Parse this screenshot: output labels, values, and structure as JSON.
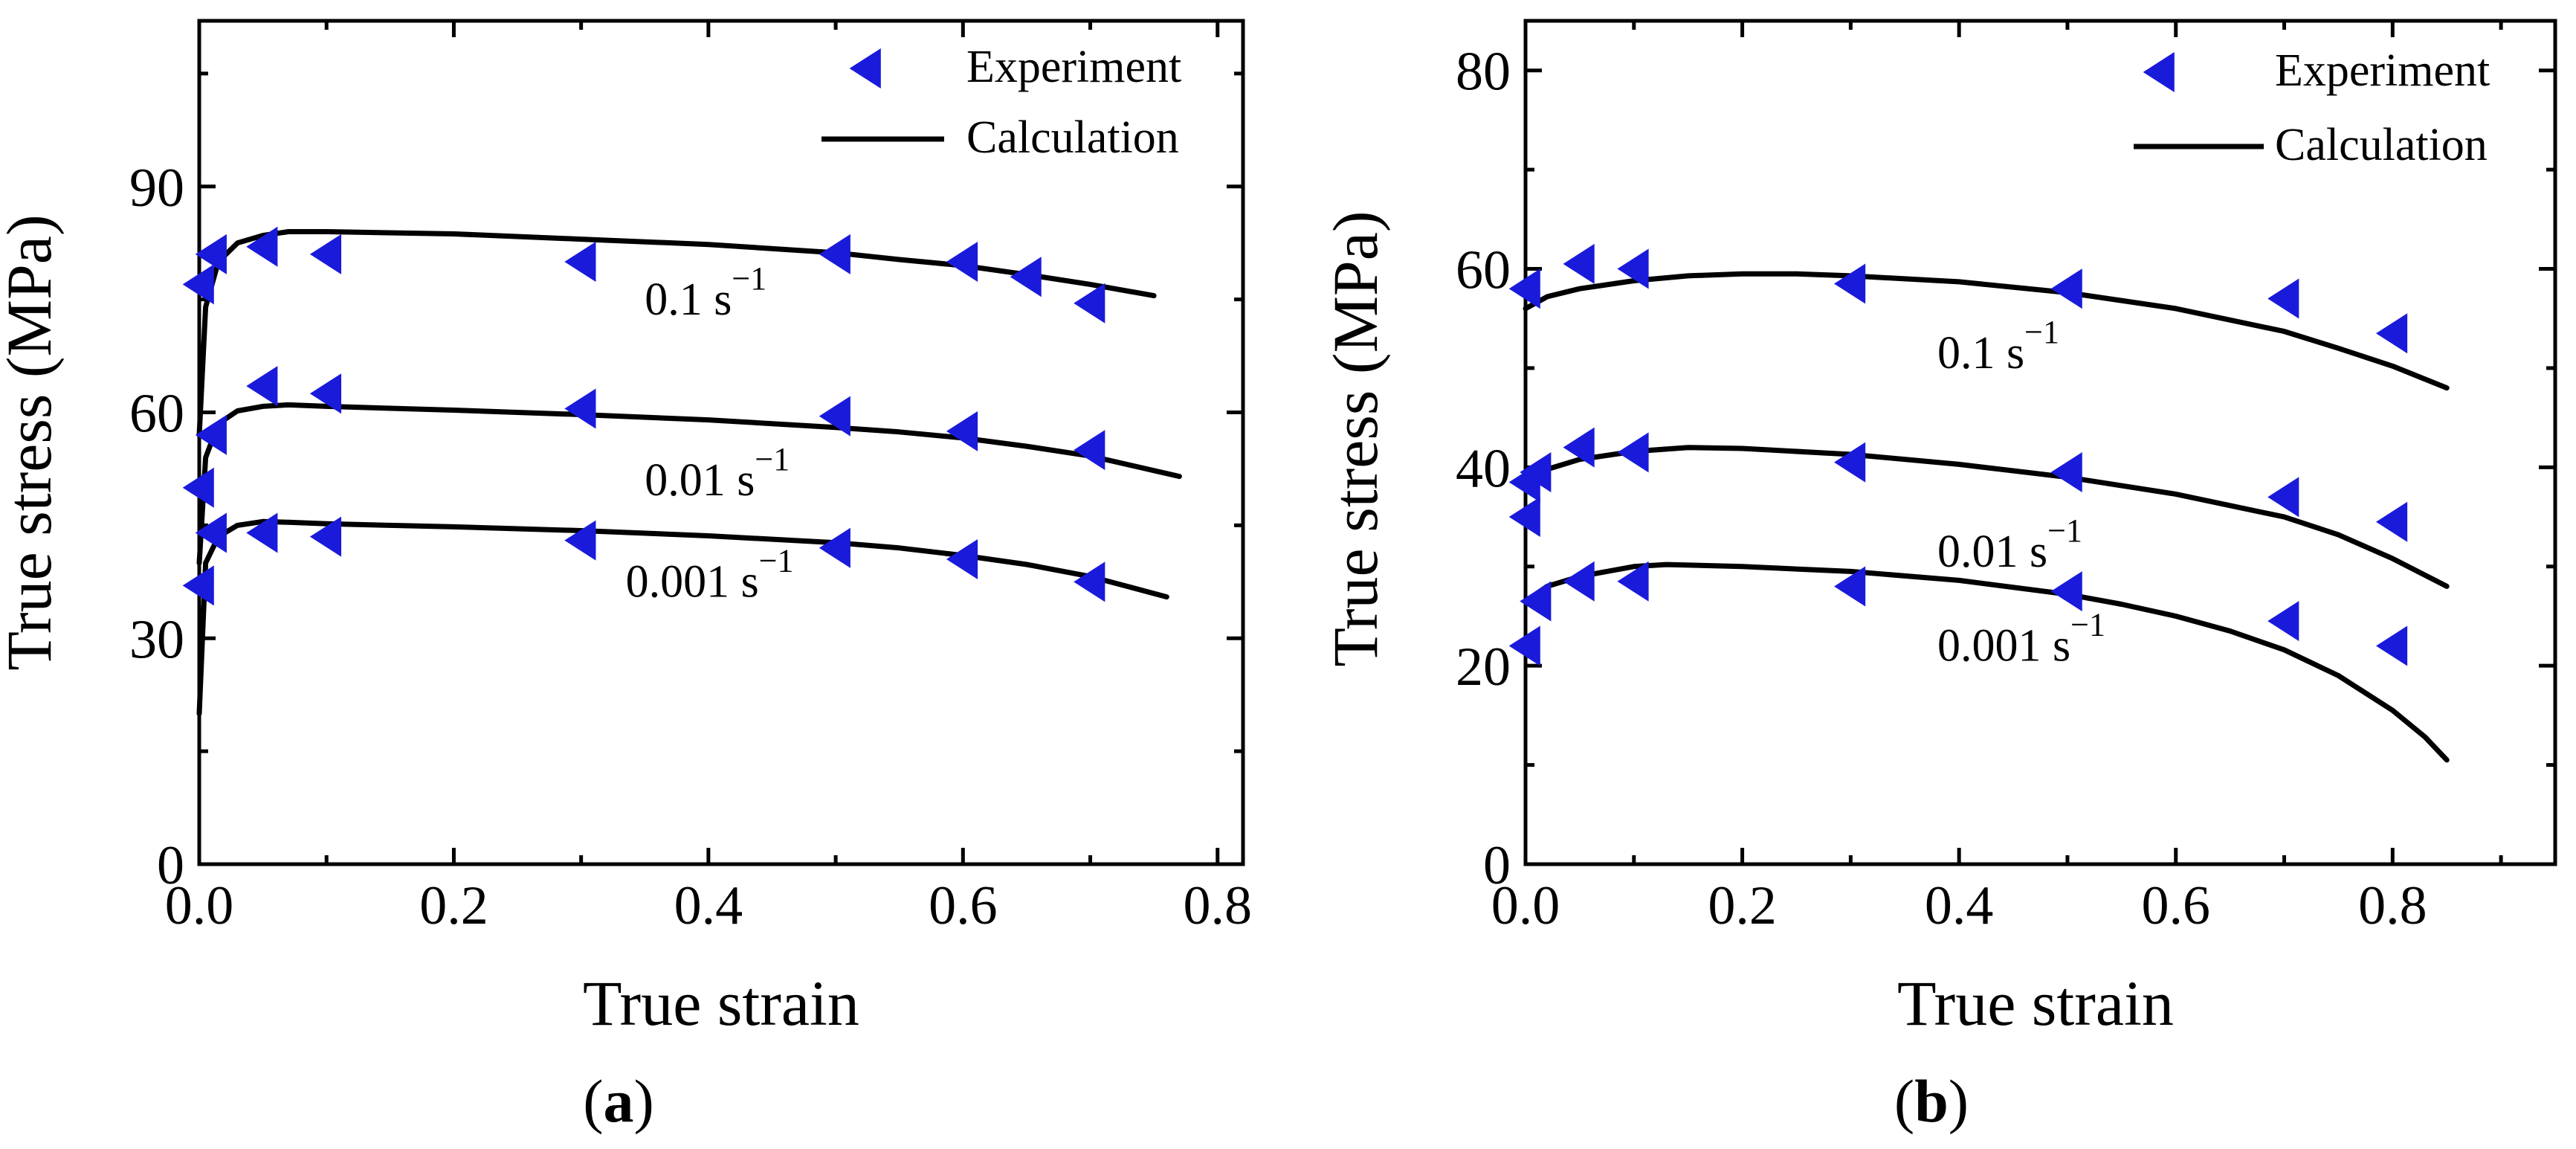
{
  "chart_data": [
    {
      "id": "a",
      "type": "line",
      "caption_open": "(",
      "caption_letter": "a",
      "caption_close": ")",
      "xlabel": "True strain",
      "ylabel": "True stress (MPa)",
      "xlim": [
        0,
        0.82
      ],
      "ylim": [
        0,
        112
      ],
      "xticks": [
        0.0,
        0.2,
        0.4,
        0.6,
        0.8
      ],
      "xtick_labels": [
        "0.0",
        "0.2",
        "0.4",
        "0.6",
        "0.8"
      ],
      "yticks": [
        0,
        30,
        60,
        90
      ],
      "ytick_labels": [
        "0",
        "30",
        "60",
        "90"
      ],
      "legend_position": "top-right",
      "legend": {
        "experiment": "Experiment",
        "calculation": "Calculation"
      },
      "marker_color": "#1a1adb",
      "line_color": "#000000",
      "series": [
        {
          "label_main": "0.1 s",
          "label_sup": "−1",
          "label_anchor": [
            0.35,
            73
          ],
          "experiment": {
            "x": [
              0.0,
              0.01,
              0.05,
              0.1,
              0.3,
              0.5,
              0.6,
              0.65,
              0.7
            ],
            "y": [
              77,
              81,
              82,
              81,
              80,
              81,
              80,
              78,
              74.5
            ]
          },
          "calculation": {
            "x": [
              0.0,
              0.005,
              0.015,
              0.03,
              0.05,
              0.07,
              0.1,
              0.2,
              0.3,
              0.4,
              0.5,
              0.55,
              0.6,
              0.65,
              0.7,
              0.75
            ],
            "y": [
              57,
              74,
              80,
              82.5,
              83.5,
              84,
              84,
              83.7,
              83,
              82.3,
              81.2,
              80.3,
              79.5,
              78.3,
              77,
              75.5
            ]
          }
        },
        {
          "label_main": "0.01 s",
          "label_sup": "−1",
          "label_anchor": [
            0.35,
            49
          ],
          "experiment": {
            "x": [
              0.0,
              0.01,
              0.05,
              0.1,
              0.3,
              0.5,
              0.6,
              0.7
            ],
            "y": [
              50,
              57,
              63.5,
              62.5,
              60.5,
              59.5,
              57.5,
              55
            ]
          },
          "calculation": {
            "x": [
              0.0,
              0.005,
              0.015,
              0.03,
              0.05,
              0.07,
              0.1,
              0.2,
              0.3,
              0.4,
              0.5,
              0.55,
              0.6,
              0.65,
              0.7,
              0.77
            ],
            "y": [
              40,
              54,
              58.5,
              60.2,
              60.8,
              61,
              60.8,
              60.3,
              59.7,
              59,
              58,
              57.4,
              56.6,
              55.5,
              54.2,
              51.5
            ]
          }
        },
        {
          "label_main": "0.001 s",
          "label_sup": "−1",
          "label_anchor": [
            0.335,
            35.5
          ],
          "experiment": {
            "x": [
              0.0,
              0.01,
              0.05,
              0.1,
              0.3,
              0.5,
              0.6,
              0.7
            ],
            "y": [
              37,
              44,
              44,
              43.5,
              43,
              42,
              40.5,
              37.5
            ]
          },
          "calculation": {
            "x": [
              0.0,
              0.005,
              0.015,
              0.03,
              0.05,
              0.07,
              0.1,
              0.2,
              0.3,
              0.4,
              0.5,
              0.55,
              0.6,
              0.65,
              0.7,
              0.76
            ],
            "y": [
              20,
              40,
              43.5,
              45,
              45.5,
              45.4,
              45.2,
              44.8,
              44.3,
              43.6,
              42.7,
              42,
              41,
              39.8,
              38.2,
              35.5
            ]
          }
        }
      ]
    },
    {
      "id": "b",
      "type": "line",
      "caption_open": "(",
      "caption_letter": "b",
      "caption_close": ")",
      "xlabel": "True strain",
      "ylabel": "True stress (MPa)",
      "xlim": [
        0,
        0.95
      ],
      "ylim": [
        0,
        85
      ],
      "xticks": [
        0.0,
        0.2,
        0.4,
        0.6,
        0.8
      ],
      "xtick_labels": [
        "0.0",
        "0.2",
        "0.4",
        "0.6",
        "0.8"
      ],
      "yticks": [
        0,
        20,
        40,
        60,
        80
      ],
      "ytick_labels": [
        "0",
        "20",
        "40",
        "60",
        "80"
      ],
      "legend_position": "top-right",
      "legend": {
        "experiment": "Experiment",
        "calculation": "Calculation"
      },
      "marker_color": "#1a1adb",
      "line_color": "#000000",
      "series": [
        {
          "label_main": "0.1 s",
          "label_sup": "−1",
          "label_anchor": [
            0.38,
            50
          ],
          "experiment": {
            "x": [
              0.0,
              0.05,
              0.1,
              0.3,
              0.5,
              0.7,
              0.8
            ],
            "y": [
              58,
              60.5,
              60,
              58.5,
              58,
              57,
              53.5
            ]
          },
          "calculation": {
            "x": [
              0.0,
              0.02,
              0.05,
              0.1,
              0.15,
              0.2,
              0.25,
              0.3,
              0.4,
              0.5,
              0.6,
              0.7,
              0.75,
              0.8,
              0.85
            ],
            "y": [
              56,
              57.2,
              58,
              58.8,
              59.3,
              59.5,
              59.5,
              59.3,
              58.7,
              57.6,
              56,
              53.7,
              52,
              50.2,
              48
            ]
          }
        },
        {
          "label_main": "0.01 s",
          "label_sup": "−1",
          "label_anchor": [
            0.38,
            30
          ],
          "experiment": {
            "x": [
              0.0,
              0.0,
              0.01,
              0.05,
              0.1,
              0.3,
              0.5,
              0.7,
              0.8
            ],
            "y": [
              35,
              38.5,
              39.5,
              42,
              41.5,
              40.5,
              39.5,
              37,
              34.5
            ]
          },
          "calculation": {
            "x": [
              0.0,
              0.02,
              0.05,
              0.1,
              0.15,
              0.2,
              0.3,
              0.4,
              0.5,
              0.6,
              0.7,
              0.75,
              0.8,
              0.85
            ],
            "y": [
              39,
              39.8,
              40.8,
              41.6,
              42,
              41.9,
              41.3,
              40.3,
              39,
              37.3,
              35,
              33.2,
              30.8,
              28
            ]
          }
        },
        {
          "label_main": "0.001 s",
          "label_sup": "−1",
          "label_anchor": [
            0.38,
            20.5
          ],
          "experiment": {
            "x": [
              0.0,
              0.01,
              0.05,
              0.1,
              0.3,
              0.5,
              0.7,
              0.8
            ],
            "y": [
              22,
              26.5,
              28.5,
              28.5,
              28,
              27.5,
              24.5,
              22
            ]
          },
          "calculation": {
            "x": [
              0.0,
              0.02,
              0.05,
              0.1,
              0.13,
              0.2,
              0.3,
              0.4,
              0.5,
              0.55,
              0.6,
              0.65,
              0.7,
              0.75,
              0.8,
              0.83,
              0.85
            ],
            "y": [
              26.5,
              28,
              29,
              30,
              30.2,
              30,
              29.5,
              28.6,
              27.2,
              26.2,
              25,
              23.5,
              21.6,
              19,
              15.5,
              12.8,
              10.5
            ]
          }
        }
      ]
    }
  ]
}
